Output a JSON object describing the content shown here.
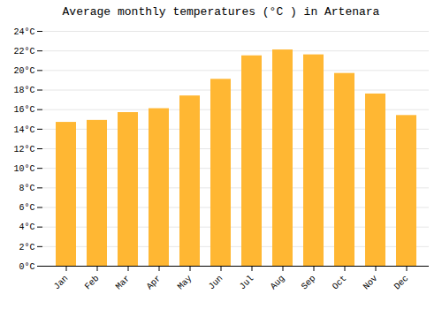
{
  "chart_data": {
    "type": "bar",
    "title": "Average monthly temperatures (°C ) in Artenara",
    "categories": [
      "Jan",
      "Feb",
      "Mar",
      "Apr",
      "May",
      "Jun",
      "Jul",
      "Aug",
      "Sep",
      "Oct",
      "Nov",
      "Dec"
    ],
    "values": [
      14.7,
      14.9,
      15.7,
      16.1,
      17.4,
      19.1,
      21.5,
      22.1,
      21.6,
      19.7,
      17.6,
      15.4
    ],
    "color": "#FFB733",
    "ylim": [
      0,
      24
    ],
    "yticks": [
      {
        "value": 0,
        "label": "0°C"
      },
      {
        "value": 2,
        "label": "2°C"
      },
      {
        "value": 4,
        "label": "4°C"
      },
      {
        "value": 6,
        "label": "6°C"
      },
      {
        "value": 8,
        "label": "8°C"
      },
      {
        "value": 10,
        "label": "10°C"
      },
      {
        "value": 12,
        "label": "12°C"
      },
      {
        "value": 14,
        "label": "14°C"
      },
      {
        "value": 16,
        "label": "16°C"
      },
      {
        "value": 18,
        "label": "18°C"
      },
      {
        "value": 20,
        "label": "20°C"
      },
      {
        "value": 22,
        "label": "22°C"
      },
      {
        "value": 24,
        "label": "24°C"
      }
    ],
    "grid": true
  }
}
